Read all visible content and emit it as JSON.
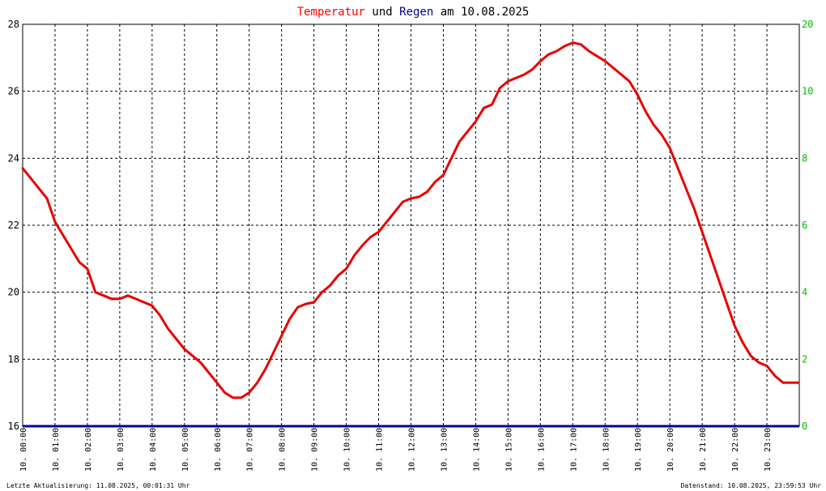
{
  "title": {
    "part1": "Temperatur",
    "part2": " und ",
    "part3": "Regen",
    "part4": " am 10.08.2025"
  },
  "footer": {
    "left": "Letzte Aktualisierung: 11.08.2025, 00:01:31 Uhr",
    "right": "Datenstand: 10.08.2025, 23:59:53 Uhr"
  },
  "colors": {
    "temperature": "#e80000",
    "rain": "#0000a0",
    "right_axis": "#00c000",
    "grid": "#000000"
  },
  "chart_data": {
    "type": "line",
    "grid": true,
    "x_ticks": [
      "10. 00:00",
      "10. 01:00",
      "10. 02:00",
      "10. 03:00",
      "10. 04:00",
      "10. 05:00",
      "10. 06:00",
      "10. 07:00",
      "10. 08:00",
      "10. 09:00",
      "10. 10:00",
      "10. 11:00",
      "10. 12:00",
      "10. 13:00",
      "10. 14:00",
      "10. 15:00",
      "10. 16:00",
      "10. 17:00",
      "10. 18:00",
      "10. 19:00",
      "10. 20:00",
      "10. 21:00",
      "10. 22:00",
      "10. 23:00"
    ],
    "y_left": {
      "ylim": [
        16,
        28
      ],
      "ticks": [
        "16",
        "18",
        "20",
        "22",
        "24",
        "26",
        "28"
      ]
    },
    "y_right": {
      "ylim": [
        0,
        20
      ],
      "ticks": [
        "0",
        "2",
        "4",
        "6",
        "8",
        "10",
        "20"
      ]
    },
    "series": [
      {
        "name": "Temperatur",
        "axis": "left",
        "x": [
          0.0,
          0.25,
          0.5,
          0.75,
          1.0,
          1.25,
          1.5,
          1.75,
          2.0,
          2.25,
          2.5,
          2.75,
          3.0,
          3.25,
          3.5,
          3.75,
          4.0,
          4.25,
          4.5,
          4.75,
          5.0,
          5.25,
          5.5,
          5.75,
          6.0,
          6.25,
          6.5,
          6.75,
          7.0,
          7.25,
          7.5,
          7.75,
          8.0,
          8.25,
          8.5,
          8.75,
          9.0,
          9.25,
          9.5,
          9.75,
          10.0,
          10.25,
          10.5,
          10.75,
          11.0,
          11.25,
          11.5,
          11.75,
          12.0,
          12.25,
          12.5,
          12.75,
          13.0,
          13.25,
          13.5,
          13.75,
          14.0,
          14.25,
          14.5,
          14.75,
          15.0,
          15.25,
          15.5,
          15.75,
          16.0,
          16.25,
          16.5,
          16.75,
          17.0,
          17.25,
          17.5,
          17.75,
          18.0,
          18.25,
          18.5,
          18.75,
          19.0,
          19.25,
          19.5,
          19.75,
          20.0,
          20.25,
          20.5,
          20.75,
          21.0,
          21.25,
          21.5,
          21.75,
          22.0,
          22.25,
          22.5,
          22.75,
          23.0,
          23.25,
          23.5,
          23.75,
          23.98
        ],
        "y": [
          23.7,
          23.4,
          23.1,
          22.8,
          22.1,
          21.7,
          21.3,
          20.9,
          20.7,
          20.0,
          19.9,
          19.8,
          19.8,
          19.9,
          19.8,
          19.7,
          19.6,
          19.3,
          18.9,
          18.6,
          18.3,
          18.1,
          17.9,
          17.6,
          17.3,
          17.0,
          16.85,
          16.85,
          17.0,
          17.3,
          17.7,
          18.2,
          18.7,
          19.2,
          19.55,
          19.65,
          19.7,
          20.0,
          20.2,
          20.5,
          20.7,
          21.1,
          21.4,
          21.65,
          21.8,
          22.1,
          22.4,
          22.7,
          22.8,
          22.85,
          23.0,
          23.3,
          23.5,
          24.0,
          24.5,
          24.8,
          25.1,
          25.5,
          25.6,
          26.1,
          26.3,
          26.4,
          26.5,
          26.65,
          26.9,
          27.1,
          27.2,
          27.35,
          27.45,
          27.4,
          27.2,
          27.05,
          26.9,
          26.7,
          26.5,
          26.3,
          25.9,
          25.4,
          25.0,
          24.7,
          24.3,
          23.7,
          23.1,
          22.5,
          21.8,
          21.1,
          20.4,
          19.7,
          19.0,
          18.5,
          18.1,
          17.9,
          17.8,
          17.5,
          17.3,
          17.3,
          17.3
        ]
      },
      {
        "name": "Regen",
        "axis": "right",
        "x": [
          0,
          24
        ],
        "y": [
          0,
          0
        ]
      }
    ]
  }
}
